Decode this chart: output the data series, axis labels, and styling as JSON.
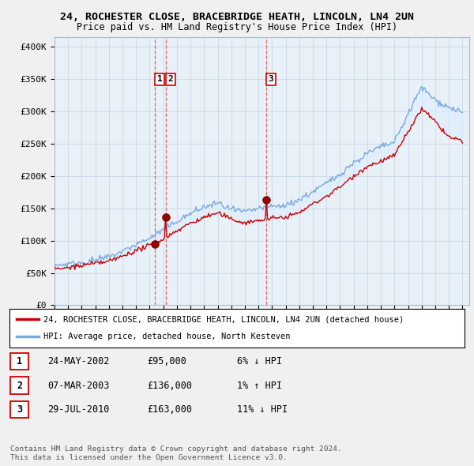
{
  "title": "24, ROCHESTER CLOSE, BRACEBRIDGE HEATH, LINCOLN, LN4 2UN",
  "subtitle": "Price paid vs. HM Land Registry's House Price Index (HPI)",
  "ylabel_ticks": [
    "£0",
    "£50K",
    "£100K",
    "£150K",
    "£200K",
    "£250K",
    "£300K",
    "£350K",
    "£400K"
  ],
  "ytick_values": [
    0,
    50000,
    100000,
    150000,
    200000,
    250000,
    300000,
    350000,
    400000
  ],
  "ylim": [
    0,
    415000
  ],
  "years_x": [
    1995,
    1996,
    1997,
    1998,
    1999,
    2000,
    2001,
    2002,
    2003,
    2004,
    2005,
    2006,
    2007,
    2008,
    2009,
    2010,
    2011,
    2012,
    2013,
    2014,
    2015,
    2016,
    2017,
    2018,
    2019,
    2020,
    2021,
    2022,
    2023,
    2024,
    2025
  ],
  "hpi_annual": [
    60000,
    62000,
    66000,
    70000,
    76000,
    85000,
    95000,
    105000,
    118000,
    132000,
    143000,
    153000,
    160000,
    150000,
    145000,
    150000,
    153000,
    155000,
    162000,
    175000,
    188000,
    202000,
    220000,
    235000,
    245000,
    252000,
    295000,
    335000,
    315000,
    305000,
    298000
  ],
  "red_annual": [
    55000,
    57000,
    60000,
    63000,
    67000,
    74000,
    82000,
    91000,
    102000,
    115000,
    126000,
    135000,
    142000,
    133000,
    128000,
    133000,
    136000,
    138000,
    145000,
    158000,
    170000,
    184000,
    200000,
    215000,
    224000,
    232000,
    270000,
    305000,
    285000,
    262000,
    255000
  ],
  "price_paid_dates": [
    2002.38,
    2003.18,
    2010.56
  ],
  "price_paid_values": [
    95000,
    136000,
    163000
  ],
  "sale_labels": [
    "1",
    "2",
    "3"
  ],
  "vline_dates": [
    2002.38,
    2003.18,
    2010.56
  ],
  "red_line_color": "#cc0000",
  "blue_line_color": "#7aaadd",
  "fill_color": "#ddeeff",
  "plot_bg_color": "#e8f0f8",
  "legend_red_label": "24, ROCHESTER CLOSE, BRACEBRIDGE HEATH, LINCOLN, LN4 2UN (detached house)",
  "legend_blue_label": "HPI: Average price, detached house, North Kesteven",
  "table_data": [
    [
      "1",
      "24-MAY-2002",
      "£95,000",
      "6% ↓ HPI"
    ],
    [
      "2",
      "07-MAR-2003",
      "£136,000",
      "1% ↑ HPI"
    ],
    [
      "3",
      "29-JUL-2010",
      "£163,000",
      "11% ↓ HPI"
    ]
  ],
  "footnote1": "Contains HM Land Registry data © Crown copyright and database right 2024.",
  "footnote2": "This data is licensed under the Open Government Licence v3.0.",
  "bg_color": "#f0f0f0",
  "grid_color": "#c8d8e8",
  "noise_seed": 42
}
